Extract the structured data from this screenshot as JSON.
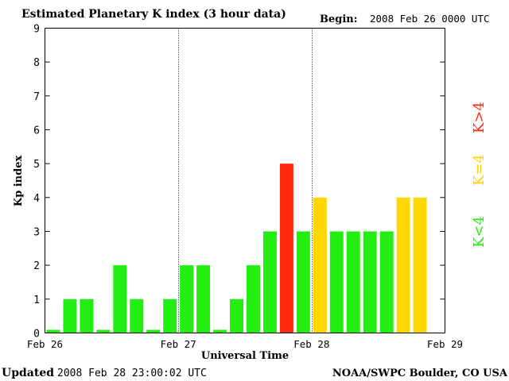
{
  "header": {
    "title": "Estimated Planetary K index (3 hour data)",
    "begin_label": "Begin:",
    "begin_value": "2008 Feb 26 0000 UTC"
  },
  "footer": {
    "updated_label": "Updated",
    "updated_value": "2008 Feb 28 23:00:02 UTC",
    "source": "NOAA/SWPC Boulder, CO USA"
  },
  "legend": {
    "k_gt4": "K>4",
    "k_eq4": "K=4",
    "k_lt4": "K<4"
  },
  "colors": {
    "below_4": "#22ee11",
    "equal_4": "#ffd700",
    "above_4": "#ff2a10",
    "axis": "#000000"
  },
  "chart_data": {
    "type": "bar",
    "title": "Estimated Planetary K index (3 hour data)",
    "xlabel": "Universal Time",
    "ylabel": "Kp index",
    "ylim": [
      0,
      9
    ],
    "yticks": [
      "0",
      "1",
      "2",
      "3",
      "4",
      "5",
      "6",
      "7",
      "8",
      "9"
    ],
    "xticks": [
      "Feb 26",
      "Feb 27",
      "Feb 28",
      "Feb 29"
    ],
    "day_dividers": [
      "Feb 27",
      "Feb 28"
    ],
    "interval_hours": 3,
    "start": "2008 Feb 26 0000 UTC",
    "values": [
      0,
      1,
      1,
      0,
      2,
      1,
      0,
      1,
      2,
      2,
      0,
      1,
      2,
      3,
      5,
      3,
      4,
      3,
      3,
      3,
      3,
      4,
      4
    ]
  }
}
